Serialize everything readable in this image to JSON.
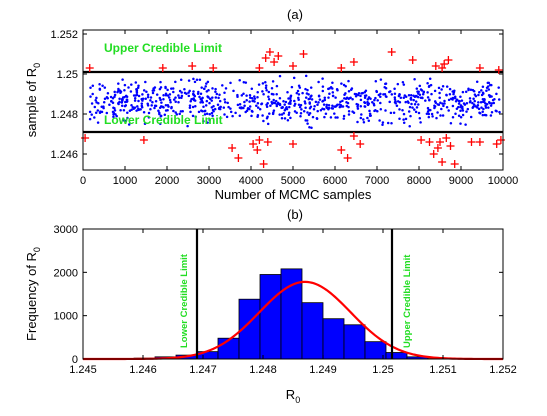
{
  "chart_data": [
    {
      "type": "scatter",
      "title": "(a)",
      "xlabel": "Number of MCMC samples",
      "ylabel": "sample of R",
      "ylabel_sub": "0",
      "xlim": [
        0,
        10000
      ],
      "ylim": [
        1.2452,
        1.2522
      ],
      "x_ticks": [
        0,
        1000,
        2000,
        3000,
        4000,
        5000,
        6000,
        7000,
        8000,
        9000,
        10000
      ],
      "x_tick_labels": [
        "0",
        "1000",
        "2000",
        "3000",
        "4000",
        "5000",
        "6000",
        "7000",
        "8000",
        "9000",
        "10000"
      ],
      "y_ticks": [
        1.246,
        1.248,
        1.25,
        1.252
      ],
      "y_tick_labels": [
        "1.246",
        "1.248",
        "1.25",
        "1.252"
      ],
      "grid": false,
      "upper_credible_limit": 1.2501,
      "lower_credible_limit": 1.2471,
      "upper_label": "Upper Credible Limit",
      "lower_label": "Lower Credible Limit",
      "inside_series": {
        "color": "#0000ff",
        "marker": "dot",
        "n_points": 900,
        "x_range": [
          150,
          9950
        ],
        "y_center": 1.2485,
        "y_range": [
          1.2471,
          1.2501
        ]
      },
      "outlier_series": {
        "color": "#ff0000",
        "marker": "plus",
        "points": [
          [
            160,
            1.2503
          ],
          [
            1900,
            1.2503
          ],
          [
            2600,
            1.2504
          ],
          [
            3100,
            1.2503
          ],
          [
            4200,
            1.2503
          ],
          [
            4350,
            1.2508
          ],
          [
            4450,
            1.2511
          ],
          [
            4550,
            1.2506
          ],
          [
            4650,
            1.2509
          ],
          [
            5000,
            1.2504
          ],
          [
            5250,
            1.251
          ],
          [
            6150,
            1.2503
          ],
          [
            6450,
            1.2506
          ],
          [
            7350,
            1.2511
          ],
          [
            7850,
            1.2507
          ],
          [
            8400,
            1.2504
          ],
          [
            8550,
            1.2503
          ],
          [
            8600,
            1.2505
          ],
          [
            8700,
            1.2507
          ],
          [
            9450,
            1.2503
          ],
          [
            9900,
            1.2502
          ],
          [
            50,
            1.2468
          ],
          [
            1450,
            1.2467
          ],
          [
            3550,
            1.2463
          ],
          [
            3700,
            1.2458
          ],
          [
            4050,
            1.2465
          ],
          [
            4150,
            1.2462
          ],
          [
            4200,
            1.2467
          ],
          [
            4300,
            1.2455
          ],
          [
            4400,
            1.2466
          ],
          [
            5000,
            1.2465
          ],
          [
            6150,
            1.2462
          ],
          [
            6300,
            1.2458
          ],
          [
            6450,
            1.2469
          ],
          [
            6600,
            1.2465
          ],
          [
            8050,
            1.2467
          ],
          [
            8250,
            1.2466
          ],
          [
            8350,
            1.246
          ],
          [
            8450,
            1.2463
          ],
          [
            8500,
            1.2466
          ],
          [
            8550,
            1.2456
          ],
          [
            8650,
            1.2468
          ],
          [
            8750,
            1.2464
          ],
          [
            8850,
            1.2455
          ],
          [
            9250,
            1.2466
          ],
          [
            9450,
            1.2466
          ],
          [
            9850,
            1.2465
          ],
          [
            9950,
            1.2467
          ]
        ]
      }
    },
    {
      "type": "bar",
      "title": "(b)",
      "xlabel": "R",
      "xlabel_sub": "0",
      "ylabel": "Frequency of R",
      "ylabel_sub": "0",
      "xlim": [
        1.245,
        1.252
      ],
      "ylim": [
        0,
        3000
      ],
      "x_ticks": [
        1.245,
        1.246,
        1.247,
        1.248,
        1.249,
        1.25,
        1.251,
        1.252
      ],
      "x_tick_labels": [
        "1.245",
        "1.246",
        "1.247",
        "1.248",
        "1.249",
        "1.25",
        "1.251",
        "1.252"
      ],
      "y_ticks": [
        0,
        1000,
        2000,
        3000
      ],
      "y_tick_labels": [
        "0",
        "1000",
        "2000",
        "3000"
      ],
      "grid": false,
      "bar_color": "#0000ff",
      "bin_edges": [
        1.2455,
        1.24585,
        1.2462,
        1.24655,
        1.2469,
        1.24725,
        1.2476,
        1.24795,
        1.2483,
        1.24865,
        1.249,
        1.24935,
        1.2497,
        1.25005,
        1.2504,
        1.25075,
        1.2511
      ],
      "values": [
        10,
        20,
        50,
        90,
        170,
        480,
        1380,
        1950,
        2080,
        1300,
        930,
        790,
        400,
        150,
        50,
        10
      ],
      "fit_curve": {
        "type": "normal",
        "mean": 1.2487,
        "sd": 0.00076,
        "peak": 1780,
        "color": "#ff0000"
      },
      "lower_credible_limit": 1.2469,
      "upper_credible_limit": 1.25015,
      "lower_label": "Lower Credible Limit",
      "upper_label": "Upper Credible Limit"
    }
  ]
}
